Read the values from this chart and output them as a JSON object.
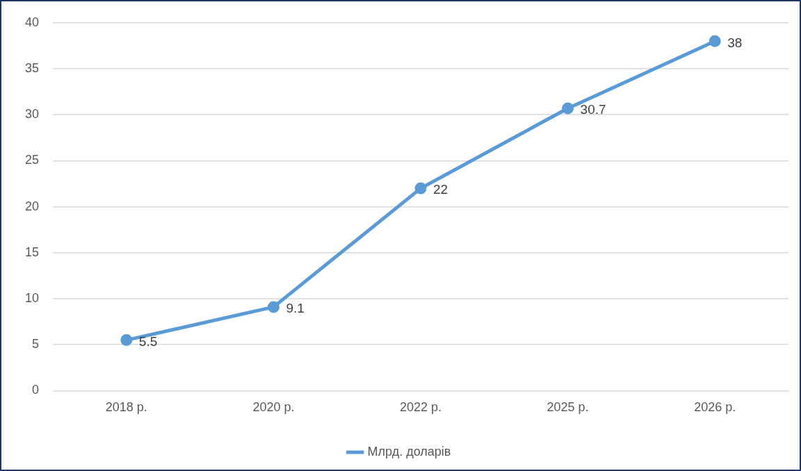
{
  "chart_data": {
    "type": "line",
    "categories": [
      "2018 р.",
      "2020 р.",
      "2022 р.",
      "2025 р.",
      "2026 р."
    ],
    "series": [
      {
        "name": "Млрд. доларів",
        "color": "#5b9bd5",
        "values": [
          5.5,
          9.1,
          22,
          30.7,
          38
        ]
      }
    ],
    "ylim": [
      0,
      40
    ],
    "yticks": [
      0,
      5,
      10,
      15,
      20,
      25,
      30,
      35,
      40
    ],
    "grid": "y",
    "legend": "bottom",
    "marker": "circle",
    "line_style": "solid",
    "data_labels": true
  }
}
